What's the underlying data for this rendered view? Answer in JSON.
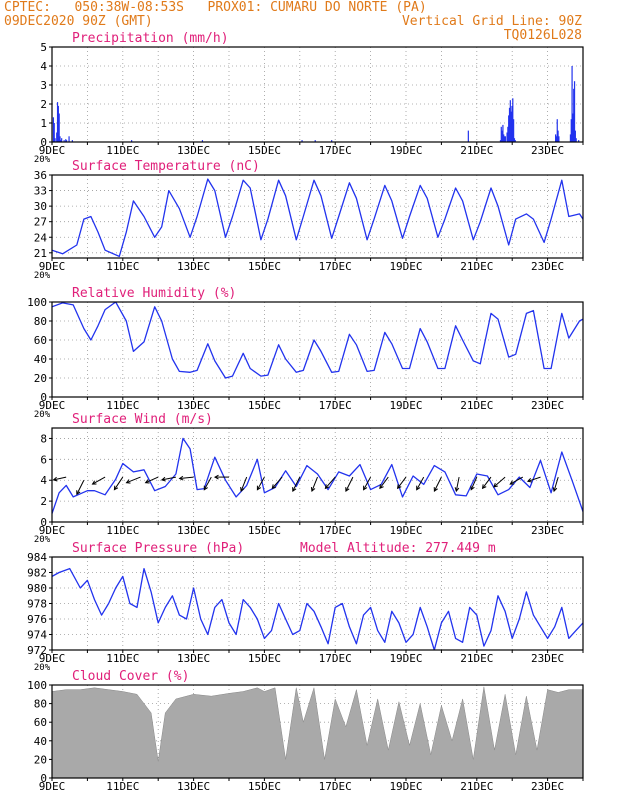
{
  "header": {
    "line1_left": "CPTEC:   050:38W-08:53S   PROX01: CUMARU DO NORTE (PA)",
    "line2_left": "09DEC2020 90Z (GMT)",
    "line2_right": "Vertical Grid Line: 90Z",
    "line3_right": "TQ0126L028",
    "text_color": "#e07a1a"
  },
  "colors": {
    "title": "#e0207a",
    "series": "#2233ee",
    "cloud": "#a9a9a9"
  },
  "x_axis": {
    "labels": [
      "9DEC",
      "11DEC",
      "13DEC",
      "15DEC",
      "17DEC",
      "19DEC",
      "21DEC",
      "23DEC"
    ],
    "clipped_label": "20%"
  },
  "extra": {
    "model_altitude": "Model Altitude: 277.449  m"
  },
  "chart_data": [
    {
      "id": "precip",
      "type": "bar",
      "title": "Precipitation (mm/h)",
      "ylim": [
        0,
        5
      ],
      "yticks": [
        0,
        1,
        2,
        3,
        4,
        5
      ],
      "x_start_day": 9,
      "x_end_day": 24,
      "values": [
        0,
        1.3,
        1.0,
        0.2,
        0,
        0.5,
        2.1,
        1.9,
        1.5,
        0.3,
        0.1,
        0.2,
        0,
        0,
        0.1,
        0,
        0.15,
        0.1,
        0,
        0,
        0.3,
        0,
        0,
        0,
        0.1,
        0,
        0,
        0,
        0,
        0,
        0,
        0,
        0,
        0,
        0,
        0,
        0,
        0,
        0,
        0,
        0,
        0,
        0,
        0,
        0,
        0,
        0,
        0,
        0,
        0,
        0,
        0,
        0,
        0,
        0,
        0,
        0,
        0,
        0,
        0,
        0,
        0,
        0,
        0,
        0,
        0,
        0,
        0,
        0,
        0,
        0,
        0,
        0,
        0,
        0,
        0,
        0,
        0,
        0,
        0,
        0,
        0,
        0,
        0,
        0,
        0,
        0,
        0,
        0,
        0,
        0,
        0,
        0,
        0,
        0,
        0,
        0.1,
        0,
        0,
        0,
        0,
        0,
        0,
        0,
        0,
        0,
        0,
        0,
        0,
        0,
        0,
        0,
        0,
        0,
        0,
        0,
        0,
        0,
        0,
        0,
        0,
        0,
        0,
        0,
        0,
        0,
        0,
        0,
        0,
        0,
        0,
        0,
        0,
        0,
        0,
        0,
        0,
        0,
        0,
        0,
        0,
        0,
        0,
        0,
        0,
        0,
        0,
        0,
        0,
        0,
        0,
        0,
        0,
        0,
        0,
        0,
        0,
        0,
        0,
        0,
        0,
        0,
        0,
        0,
        0,
        0,
        0,
        0,
        0,
        0,
        0,
        0,
        0,
        0,
        0,
        0,
        0,
        0,
        0,
        0,
        0,
        0,
        0.1,
        0,
        0,
        0,
        0,
        0,
        0,
        0,
        0,
        0,
        0,
        0,
        0,
        0,
        0,
        0,
        0,
        0,
        0,
        0,
        0,
        0,
        0,
        0,
        0,
        0,
        0,
        0,
        0,
        0,
        0,
        0,
        0,
        0,
        0,
        0,
        0,
        0,
        0,
        0,
        0,
        0,
        0,
        0,
        0,
        0,
        0,
        0,
        0,
        0,
        0,
        0,
        0,
        0,
        0,
        0,
        0,
        0,
        0,
        0,
        0,
        0,
        0,
        0,
        0,
        0,
        0,
        0,
        0,
        0,
        0,
        0,
        0,
        0,
        0,
        0,
        0,
        0,
        0,
        0,
        0,
        0,
        0,
        0,
        0,
        0,
        0,
        0,
        0,
        0,
        0,
        0,
        0,
        0,
        0,
        0,
        0,
        0,
        0,
        0,
        0,
        0,
        0,
        0,
        0,
        0,
        0,
        0,
        0,
        0,
        0,
        0,
        0,
        0,
        0,
        0,
        0,
        0,
        0,
        0,
        0,
        0.1,
        0,
        0,
        0,
        0,
        0,
        0,
        0,
        0,
        0,
        0,
        0,
        0,
        0,
        0,
        0,
        0.1,
        0,
        0,
        0,
        0,
        0,
        0,
        0,
        0,
        0,
        0,
        0,
        0,
        0,
        0,
        0,
        0,
        0,
        0,
        0,
        0.1,
        0,
        0,
        0,
        0,
        0,
        0,
        0,
        0,
        0,
        0,
        0,
        0,
        0,
        0,
        0,
        0,
        0,
        0,
        0,
        0,
        0,
        0,
        0,
        0,
        0,
        0,
        0,
        0,
        0,
        0,
        0,
        0,
        0,
        0,
        0,
        0,
        0,
        0,
        0,
        0,
        0,
        0,
        0,
        0,
        0,
        0,
        0,
        0,
        0,
        0,
        0,
        0,
        0,
        0,
        0,
        0,
        0,
        0,
        0,
        0,
        0,
        0,
        0,
        0,
        0,
        0,
        0,
        0,
        0,
        0,
        0,
        0,
        0,
        0,
        0,
        0,
        0,
        0,
        0,
        0,
        0,
        0,
        0,
        0,
        0,
        0,
        0,
        0,
        0,
        0,
        0,
        0,
        0,
        0,
        0,
        0,
        0,
        0,
        0,
        0,
        0,
        0,
        0,
        0,
        0,
        0,
        0,
        0,
        0,
        0,
        0,
        0,
        0,
        0,
        0,
        0,
        0,
        0,
        0,
        0,
        0,
        0,
        0,
        0,
        0,
        0,
        0,
        0,
        0,
        0,
        0,
        0,
        0,
        0,
        0,
        0,
        0,
        0,
        0,
        0,
        0,
        0,
        0,
        0,
        0,
        0,
        0,
        0,
        0,
        0,
        0,
        0,
        0,
        0,
        0,
        0,
        0,
        0,
        0,
        0,
        0,
        0,
        0,
        0,
        0,
        0.6,
        0,
        0,
        0,
        0,
        0,
        0,
        0,
        0,
        0,
        0,
        0,
        0,
        0,
        0,
        0,
        0,
        0,
        0,
        0,
        0,
        0,
        0,
        0,
        0,
        0,
        0,
        0,
        0,
        0,
        0,
        0,
        0,
        0,
        0,
        0,
        0,
        0,
        0,
        0.1,
        0.8,
        0.6,
        0.9,
        0.4,
        0.3,
        0.3,
        0,
        0.5,
        0.8,
        1.4,
        1.8,
        2.2,
        1.6,
        1.9,
        2.3,
        1.2,
        0.2,
        0.1,
        0,
        0,
        0,
        0,
        0,
        0,
        0,
        0,
        0,
        0,
        0,
        0,
        0,
        0,
        0,
        0,
        0,
        0,
        0,
        0,
        0,
        0,
        0,
        0,
        0,
        0,
        0,
        0,
        0,
        0,
        0,
        0,
        0,
        0,
        0,
        0,
        0,
        0,
        0,
        0,
        0,
        0,
        0,
        0,
        0,
        0,
        0,
        0,
        0.4,
        0.3,
        1.2,
        0.6,
        0.3,
        0,
        0,
        0,
        0,
        0,
        0,
        0,
        0,
        0,
        0,
        0,
        0,
        0,
        0.4,
        1.2,
        4.0,
        1.5,
        2.8,
        3.2,
        0.6,
        0.2,
        0,
        0,
        0.1,
        0,
        0,
        0,
        0,
        0
      ]
    },
    {
      "id": "temp",
      "type": "line",
      "title": "Surface Temperature (nC)",
      "ylim": [
        20,
        36
      ],
      "yticks": [
        21,
        24,
        27,
        30,
        33,
        36
      ],
      "x_days": [
        9.0,
        9.3,
        9.7,
        9.9,
        10.1,
        10.3,
        10.5,
        10.9,
        11.1,
        11.3,
        11.6,
        11.9,
        12.1,
        12.3,
        12.6,
        12.9,
        13.1,
        13.4,
        13.6,
        13.9,
        14.1,
        14.4,
        14.6,
        14.9,
        15.1,
        15.4,
        15.6,
        15.9,
        16.1,
        16.4,
        16.6,
        16.9,
        17.1,
        17.4,
        17.6,
        17.9,
        18.1,
        18.4,
        18.6,
        18.9,
        19.1,
        19.4,
        19.6,
        19.9,
        20.1,
        20.4,
        20.6,
        20.9,
        21.1,
        21.4,
        21.6,
        21.9,
        22.1,
        22.4,
        22.6,
        22.9,
        23.1,
        23.4,
        23.6,
        23.9,
        24.0
      ],
      "values": [
        21.5,
        20.8,
        22.5,
        27.5,
        28.0,
        25.0,
        21.5,
        20.3,
        25.0,
        31.0,
        28.0,
        24.0,
        26.0,
        33.0,
        29.5,
        24.0,
        28.0,
        35.2,
        33.0,
        24.0,
        28.0,
        35.0,
        33.5,
        23.5,
        27.5,
        35.0,
        32.0,
        23.5,
        28.0,
        35.0,
        32.0,
        23.8,
        28.0,
        34.5,
        31.5,
        23.5,
        27.5,
        34.0,
        31.0,
        23.8,
        28.0,
        34.0,
        31.5,
        24.0,
        27.5,
        33.5,
        31.0,
        23.5,
        27.0,
        33.5,
        30.0,
        22.5,
        27.5,
        28.5,
        27.5,
        23.0,
        27.5,
        35.0,
        28.0,
        28.5,
        27.5
      ]
    },
    {
      "id": "rh",
      "type": "line",
      "title": "Relative Humidity (%)",
      "ylim": [
        0,
        100
      ],
      "yticks": [
        0,
        20,
        40,
        60,
        80,
        100
      ],
      "x_days": [
        9.0,
        9.3,
        9.6,
        9.9,
        10.1,
        10.3,
        10.5,
        10.8,
        11.1,
        11.3,
        11.6,
        11.9,
        12.1,
        12.4,
        12.6,
        12.9,
        13.1,
        13.4,
        13.6,
        13.9,
        14.1,
        14.4,
        14.6,
        14.9,
        15.1,
        15.4,
        15.6,
        15.9,
        16.1,
        16.4,
        16.6,
        16.9,
        17.1,
        17.4,
        17.6,
        17.9,
        18.1,
        18.4,
        18.6,
        18.9,
        19.1,
        19.4,
        19.6,
        19.9,
        20.1,
        20.4,
        20.6,
        20.9,
        21.1,
        21.4,
        21.6,
        21.9,
        22.1,
        22.4,
        22.6,
        22.9,
        23.1,
        23.4,
        23.6,
        23.9,
        24.0
      ],
      "values": [
        95,
        99,
        97,
        72,
        60,
        75,
        92,
        100,
        80,
        48,
        58,
        95,
        80,
        40,
        27,
        26,
        28,
        56,
        38,
        20,
        22,
        46,
        30,
        22,
        23,
        55,
        40,
        26,
        28,
        60,
        48,
        26,
        27,
        66,
        55,
        27,
        28,
        68,
        56,
        30,
        30,
        72,
        58,
        30,
        30,
        75,
        60,
        38,
        35,
        88,
        82,
        42,
        45,
        88,
        91,
        30,
        30,
        88,
        62,
        80,
        82
      ]
    },
    {
      "id": "wind",
      "type": "line",
      "title": "Surface Wind (m/s)",
      "ylim": [
        0,
        9
      ],
      "yticks": [
        0,
        2,
        4,
        6,
        8
      ],
      "x_days": [
        9.0,
        9.2,
        9.4,
        9.6,
        9.8,
        10.0,
        10.2,
        10.5,
        10.8,
        11.0,
        11.3,
        11.6,
        11.9,
        12.2,
        12.5,
        12.7,
        12.9,
        13.1,
        13.3,
        13.6,
        13.9,
        14.2,
        14.5,
        14.8,
        15.0,
        15.3,
        15.6,
        15.9,
        16.2,
        16.5,
        16.8,
        17.1,
        17.4,
        17.7,
        18.0,
        18.3,
        18.6,
        18.9,
        19.2,
        19.5,
        19.8,
        20.1,
        20.4,
        20.7,
        21.0,
        21.3,
        21.6,
        21.9,
        22.2,
        22.5,
        22.8,
        23.1,
        23.4,
        23.7,
        24.0
      ],
      "values": [
        0.8,
        2.8,
        3.5,
        2.4,
        2.7,
        3.0,
        3.0,
        2.6,
        4.1,
        5.6,
        4.8,
        5.0,
        3.0,
        3.4,
        4.6,
        8.0,
        7.0,
        3.1,
        3.2,
        6.2,
        4.0,
        2.4,
        3.5,
        6.0,
        2.8,
        3.3,
        4.9,
        3.4,
        5.4,
        4.6,
        3.1,
        4.8,
        4.4,
        5.5,
        3.1,
        3.6,
        5.5,
        2.4,
        4.4,
        3.6,
        5.4,
        4.8,
        2.6,
        2.5,
        4.6,
        4.4,
        2.6,
        3.1,
        4.3,
        3.3,
        5.9,
        2.8,
        6.7,
        3.9,
        1.0
      ]
    },
    {
      "id": "pressure",
      "type": "line",
      "title": "Surface Pressure (hPa)",
      "ylim": [
        972,
        984
      ],
      "yticks": [
        972,
        974,
        976,
        978,
        980,
        982,
        984
      ],
      "x_days": [
        9.0,
        9.2,
        9.5,
        9.8,
        10.0,
        10.2,
        10.4,
        10.6,
        10.8,
        11.0,
        11.2,
        11.4,
        11.6,
        11.8,
        12.0,
        12.2,
        12.4,
        12.6,
        12.8,
        13.0,
        13.2,
        13.4,
        13.6,
        13.8,
        14.0,
        14.2,
        14.4,
        14.6,
        14.8,
        15.0,
        15.2,
        15.4,
        15.6,
        15.8,
        16.0,
        16.2,
        16.4,
        16.6,
        16.8,
        17.0,
        17.2,
        17.4,
        17.6,
        17.8,
        18.0,
        18.2,
        18.4,
        18.6,
        18.8,
        19.0,
        19.2,
        19.4,
        19.6,
        19.8,
        20.0,
        20.2,
        20.4,
        20.6,
        20.8,
        21.0,
        21.2,
        21.4,
        21.6,
        21.8,
        22.0,
        22.2,
        22.4,
        22.6,
        22.8,
        23.0,
        23.2,
        23.4,
        23.6,
        23.8,
        24.0
      ],
      "values": [
        981.5,
        982.0,
        982.5,
        980.0,
        981.0,
        978.5,
        976.5,
        978.0,
        980.0,
        981.5,
        978.0,
        977.5,
        982.5,
        979.5,
        975.5,
        977.5,
        979.0,
        976.5,
        976.0,
        980.0,
        976.0,
        974.0,
        977.5,
        978.5,
        975.5,
        974.0,
        978.5,
        977.5,
        976.0,
        973.5,
        974.5,
        978.0,
        976.0,
        974.0,
        974.5,
        978.0,
        977.0,
        975.0,
        972.8,
        977.5,
        978.0,
        975.0,
        972.8,
        976.5,
        977.5,
        974.5,
        973.0,
        977.0,
        975.5,
        973.0,
        974.0,
        977.5,
        975.0,
        972.0,
        975.5,
        977.0,
        973.5,
        973.0,
        977.5,
        976.5,
        972.5,
        974.5,
        979.0,
        977.0,
        973.5,
        976.0,
        979.5,
        976.5,
        975.0,
        973.5,
        975.0,
        977.5,
        973.5,
        974.5,
        975.5
      ]
    },
    {
      "id": "cloud",
      "type": "area",
      "title": "Cloud Cover (%)",
      "ylim": [
        0,
        100
      ],
      "yticks": [
        0,
        20,
        40,
        60,
        80,
        100
      ],
      "x_days": [
        9.0,
        9.4,
        9.8,
        10.2,
        10.6,
        11.0,
        11.4,
        11.8,
        12.0,
        12.2,
        12.5,
        12.8,
        13.0,
        13.5,
        14.0,
        14.4,
        14.8,
        15.0,
        15.3,
        15.6,
        15.9,
        16.1,
        16.4,
        16.7,
        17.0,
        17.3,
        17.6,
        17.9,
        18.2,
        18.5,
        18.8,
        19.1,
        19.4,
        19.7,
        20.0,
        20.3,
        20.6,
        20.9,
        21.2,
        21.5,
        21.8,
        22.1,
        22.4,
        22.7,
        23.0,
        23.3,
        23.6,
        24.0
      ],
      "values": [
        93,
        95,
        95,
        97,
        95,
        93,
        90,
        70,
        18,
        70,
        85,
        88,
        90,
        88,
        91,
        93,
        97,
        93,
        97,
        20,
        97,
        60,
        97,
        20,
        85,
        55,
        95,
        35,
        85,
        30,
        82,
        35,
        80,
        25,
        78,
        40,
        85,
        20,
        98,
        30,
        90,
        25,
        88,
        30,
        95,
        92,
        95,
        95
      ]
    }
  ]
}
